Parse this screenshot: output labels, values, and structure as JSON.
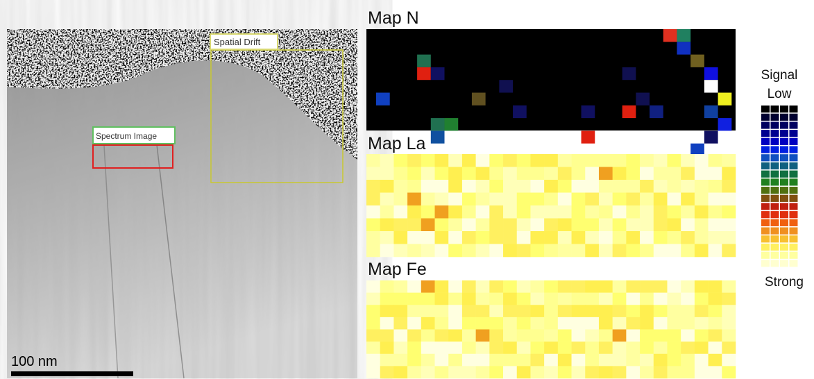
{
  "image": {
    "labels": {
      "spatial_drift": "Spatial Drift",
      "spectrum_image": "Spectrum Image"
    },
    "scale_bar": "100 nm"
  },
  "maps": [
    {
      "title": "Map N"
    },
    {
      "title": "Map La"
    },
    {
      "title": "Map Fe"
    }
  ],
  "legend": {
    "title": "Signal",
    "low": "Low",
    "high": "Strong"
  }
}
